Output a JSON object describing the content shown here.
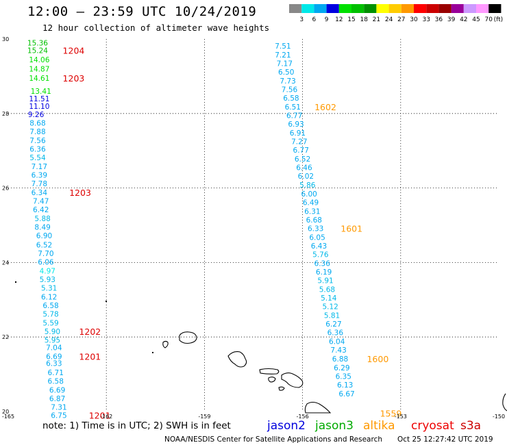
{
  "title": "12:00 – 23:59 UTC 10/24/2019",
  "subtitle": "12 hour collection of altimeter wave heights",
  "scale": {
    "colors": [
      "#888888",
      "#00e8e8",
      "#00a8f0",
      "#0000e0",
      "#00e000",
      "#00c000",
      "#009000",
      "#ffff00",
      "#ffcc00",
      "#ff9900",
      "#ff0000",
      "#cc0000",
      "#990000",
      "#990099",
      "#cc99ff",
      "#ff99ff",
      "#000000"
    ],
    "labels": [
      "3",
      "6",
      "9",
      "12",
      "15",
      "18",
      "21",
      "24",
      "27",
      "30",
      "33",
      "36",
      "39",
      "42",
      "45",
      "70"
    ],
    "unit": "(ft)"
  },
  "note": "note: 1) Time is in UTC; 2) SWH is in feet",
  "missions": [
    {
      "name": "jason2",
      "color": "#0000dd"
    },
    {
      "name": "jason3",
      "color": "#00aa00"
    },
    {
      "name": "altika",
      "color": "#ff9900"
    },
    {
      "name": "cryosat",
      "color": "#ee0000"
    },
    {
      "name": "s3a",
      "color": "#cc0000"
    }
  ],
  "footer": {
    "credit": "NOAA/NESDIS Center for Satellite Applications and Research",
    "timestamp": "Oct 25 12:27:42 UTC 2019"
  },
  "chart_data": {
    "type": "scatter",
    "xlim": [
      -165,
      -150
    ],
    "ylim": [
      20,
      30
    ],
    "x_ticks": [
      "-165",
      "-162",
      "-159",
      "-156",
      "-153",
      "-150"
    ],
    "y_ticks": [
      "20",
      "22",
      "24",
      "26",
      "28",
      "30"
    ],
    "grid": true,
    "tracks": [
      {
        "name": "west",
        "points": [
          {
            "x": -164.1,
            "y": 29.9,
            "v": "15.36",
            "c": "#00c000"
          },
          {
            "x": -164.1,
            "y": 29.7,
            "v": "15.24",
            "c": "#00c000"
          },
          {
            "x": -164.05,
            "y": 29.45,
            "v": "14.06",
            "c": "#00e000"
          },
          {
            "x": -164.05,
            "y": 29.2,
            "v": "14.87",
            "c": "#00e000"
          },
          {
            "x": -164.05,
            "y": 28.95,
            "v": "14.61",
            "c": "#00e000"
          },
          {
            "x": -164.0,
            "y": 28.6,
            "v": "13.41",
            "c": "#00e000"
          },
          {
            "x": -164.05,
            "y": 28.4,
            "v": "11.51",
            "c": "#0000e0"
          },
          {
            "x": -164.05,
            "y": 28.2,
            "v": "11.10",
            "c": "#0000e0"
          },
          {
            "x": -164.15,
            "y": 27.98,
            "v": "9.26",
            "c": "#0000e0"
          },
          {
            "x": -164.1,
            "y": 27.75,
            "v": "8.68",
            "c": "#00a8f0"
          },
          {
            "x": -164.1,
            "y": 27.52,
            "v": "7.88",
            "c": "#00a8f0"
          },
          {
            "x": -164.1,
            "y": 27.28,
            "v": "7.56",
            "c": "#00a8f0"
          },
          {
            "x": -164.1,
            "y": 27.05,
            "v": "6.36",
            "c": "#00a8f0"
          },
          {
            "x": -164.1,
            "y": 26.82,
            "v": "5.54",
            "c": "#00b8e8"
          },
          {
            "x": -164.05,
            "y": 26.58,
            "v": "7.17",
            "c": "#00a8f0"
          },
          {
            "x": -164.05,
            "y": 26.35,
            "v": "6.39",
            "c": "#00a8f0"
          },
          {
            "x": -164.05,
            "y": 26.12,
            "v": "7.78",
            "c": "#00a8f0"
          },
          {
            "x": -164.05,
            "y": 25.88,
            "v": "6.34",
            "c": "#00a8f0"
          },
          {
            "x": -164.0,
            "y": 25.65,
            "v": "7.47",
            "c": "#00a8f0"
          },
          {
            "x": -164.0,
            "y": 25.42,
            "v": "6.42",
            "c": "#00a8f0"
          },
          {
            "x": -163.95,
            "y": 25.18,
            "v": "5.88",
            "c": "#00b8e8"
          },
          {
            "x": -163.95,
            "y": 24.95,
            "v": "8.49",
            "c": "#00a8f0"
          },
          {
            "x": -163.9,
            "y": 24.72,
            "v": "6.90",
            "c": "#00a8f0"
          },
          {
            "x": -163.9,
            "y": 24.48,
            "v": "6.52",
            "c": "#00a8f0"
          },
          {
            "x": -163.85,
            "y": 24.25,
            "v": "7.70",
            "c": "#00a8f0"
          },
          {
            "x": -163.85,
            "y": 24.02,
            "v": "6.06",
            "c": "#00a8f0"
          },
          {
            "x": -163.8,
            "y": 23.78,
            "v": "4.97",
            "c": "#00e8e8"
          },
          {
            "x": -163.8,
            "y": 23.55,
            "v": "5.93",
            "c": "#00b8e8"
          },
          {
            "x": -163.75,
            "y": 23.32,
            "v": "5.31",
            "c": "#00b8e8"
          },
          {
            "x": -163.75,
            "y": 23.08,
            "v": "6.12",
            "c": "#00a8f0"
          },
          {
            "x": -163.7,
            "y": 22.85,
            "v": "6.58",
            "c": "#00a8f0"
          },
          {
            "x": -163.7,
            "y": 22.62,
            "v": "5.78",
            "c": "#00b8e8"
          },
          {
            "x": -163.7,
            "y": 22.38,
            "v": "5.59",
            "c": "#00b8e8"
          },
          {
            "x": -163.65,
            "y": 22.15,
            "v": "5.90",
            "c": "#00b8e8"
          },
          {
            "x": -163.65,
            "y": 21.92,
            "v": "5.95",
            "c": "#00b8e8"
          },
          {
            "x": -163.6,
            "y": 21.72,
            "v": "7.04",
            "c": "#00a8f0"
          },
          {
            "x": -163.6,
            "y": 21.48,
            "v": "6.69",
            "c": "#00a8f0"
          },
          {
            "x": -163.6,
            "y": 21.3,
            "v": "6.33",
            "c": "#00a8f0"
          },
          {
            "x": -163.55,
            "y": 21.05,
            "v": "6.71",
            "c": "#00a8f0"
          },
          {
            "x": -163.55,
            "y": 20.82,
            "v": "6.58",
            "c": "#00a8f0"
          },
          {
            "x": -163.5,
            "y": 20.58,
            "v": "6.69",
            "c": "#00a8f0"
          },
          {
            "x": -163.5,
            "y": 20.35,
            "v": "6.87",
            "c": "#00a8f0"
          },
          {
            "x": -163.45,
            "y": 20.12,
            "v": "7.31",
            "c": "#00a8f0"
          },
          {
            "x": -163.45,
            "y": 19.9,
            "v": "6.75",
            "c": "#00a8f0"
          }
        ]
      },
      {
        "name": "east",
        "points": [
          {
            "x": -156.6,
            "y": 29.82,
            "v": "7.51",
            "c": "#00a8f0"
          },
          {
            "x": -156.6,
            "y": 29.58,
            "v": "7.21",
            "c": "#00a8f0"
          },
          {
            "x": -156.55,
            "y": 29.35,
            "v": "7.17",
            "c": "#00a8f0"
          },
          {
            "x": -156.5,
            "y": 29.12,
            "v": "6.50",
            "c": "#00a8f0"
          },
          {
            "x": -156.45,
            "y": 28.88,
            "v": "7.73",
            "c": "#00a8f0"
          },
          {
            "x": -156.4,
            "y": 28.65,
            "v": "7.56",
            "c": "#00a8f0"
          },
          {
            "x": -156.35,
            "y": 28.42,
            "v": "6.58",
            "c": "#00a8f0"
          },
          {
            "x": -156.3,
            "y": 28.18,
            "v": "6.51",
            "c": "#00a8f0"
          },
          {
            "x": -156.25,
            "y": 27.95,
            "v": "6.77",
            "c": "#00a8f0"
          },
          {
            "x": -156.2,
            "y": 27.72,
            "v": "6.93",
            "c": "#00a8f0"
          },
          {
            "x": -156.15,
            "y": 27.48,
            "v": "6.91",
            "c": "#00a8f0"
          },
          {
            "x": -156.1,
            "y": 27.25,
            "v": "7.27",
            "c": "#00a8f0"
          },
          {
            "x": -156.05,
            "y": 27.02,
            "v": "6.77",
            "c": "#00a8f0"
          },
          {
            "x": -156.0,
            "y": 26.78,
            "v": "6.52",
            "c": "#00a8f0"
          },
          {
            "x": -155.95,
            "y": 26.55,
            "v": "6.46",
            "c": "#00a8f0"
          },
          {
            "x": -155.9,
            "y": 26.32,
            "v": "6.02",
            "c": "#00a8f0"
          },
          {
            "x": -155.85,
            "y": 26.08,
            "v": "5.86",
            "c": "#00b8e8"
          },
          {
            "x": -155.8,
            "y": 25.85,
            "v": "6.00",
            "c": "#00a8f0"
          },
          {
            "x": -155.75,
            "y": 25.62,
            "v": "6.49",
            "c": "#00a8f0"
          },
          {
            "x": -155.7,
            "y": 25.38,
            "v": "6.31",
            "c": "#00a8f0"
          },
          {
            "x": -155.65,
            "y": 25.15,
            "v": "6.68",
            "c": "#00a8f0"
          },
          {
            "x": -155.6,
            "y": 24.92,
            "v": "6.33",
            "c": "#00a8f0"
          },
          {
            "x": -155.55,
            "y": 24.68,
            "v": "6.05",
            "c": "#00a8f0"
          },
          {
            "x": -155.5,
            "y": 24.45,
            "v": "6.43",
            "c": "#00a8f0"
          },
          {
            "x": -155.45,
            "y": 24.22,
            "v": "5.76",
            "c": "#00b8e8"
          },
          {
            "x": -155.4,
            "y": 23.98,
            "v": "6.36",
            "c": "#00a8f0"
          },
          {
            "x": -155.35,
            "y": 23.75,
            "v": "6.19",
            "c": "#00a8f0"
          },
          {
            "x": -155.3,
            "y": 23.52,
            "v": "5.91",
            "c": "#00b8e8"
          },
          {
            "x": -155.25,
            "y": 23.28,
            "v": "5.68",
            "c": "#00b8e8"
          },
          {
            "x": -155.2,
            "y": 23.05,
            "v": "5.14",
            "c": "#00b8e8"
          },
          {
            "x": -155.15,
            "y": 22.82,
            "v": "5.12",
            "c": "#00b8e8"
          },
          {
            "x": -155.1,
            "y": 22.58,
            "v": "5.81",
            "c": "#00b8e8"
          },
          {
            "x": -155.05,
            "y": 22.35,
            "v": "6.27",
            "c": "#00a8f0"
          },
          {
            "x": -155.0,
            "y": 22.12,
            "v": "6.36",
            "c": "#00a8f0"
          },
          {
            "x": -154.95,
            "y": 21.88,
            "v": "6.04",
            "c": "#00a8f0"
          },
          {
            "x": -154.9,
            "y": 21.65,
            "v": "7.43",
            "c": "#00a8f0"
          },
          {
            "x": -154.85,
            "y": 21.42,
            "v": "6.88",
            "c": "#00a8f0"
          },
          {
            "x": -154.8,
            "y": 21.18,
            "v": "6.29",
            "c": "#00a8f0"
          },
          {
            "x": -154.75,
            "y": 20.95,
            "v": "6.35",
            "c": "#00a8f0"
          },
          {
            "x": -154.7,
            "y": 20.72,
            "v": "6.13",
            "c": "#00a8f0"
          },
          {
            "x": -154.65,
            "y": 20.48,
            "v": "6.67",
            "c": "#00a8f0"
          }
        ]
      }
    ],
    "time_labels": [
      {
        "x": -163.0,
        "y": 29.7,
        "t": "1204",
        "c": "#dd0000"
      },
      {
        "x": -163.0,
        "y": 28.95,
        "t": "1203",
        "c": "#dd0000"
      },
      {
        "x": -162.8,
        "y": 25.88,
        "t": "1203",
        "c": "#dd0000"
      },
      {
        "x": -162.5,
        "y": 22.15,
        "t": "1202",
        "c": "#dd0000"
      },
      {
        "x": -162.5,
        "y": 21.48,
        "t": "1201",
        "c": "#dd0000"
      },
      {
        "x": -162.2,
        "y": 19.9,
        "t": "1201",
        "c": "#dd0000"
      },
      {
        "x": -155.3,
        "y": 28.18,
        "t": "1602",
        "c": "#ff9900"
      },
      {
        "x": -154.5,
        "y": 24.92,
        "t": "1601",
        "c": "#ff9900"
      },
      {
        "x": -153.7,
        "y": 21.42,
        "t": "1600",
        "c": "#ff9900"
      },
      {
        "x": -153.3,
        "y": 19.95,
        "t": "1559",
        "c": "#ff9900"
      }
    ]
  }
}
